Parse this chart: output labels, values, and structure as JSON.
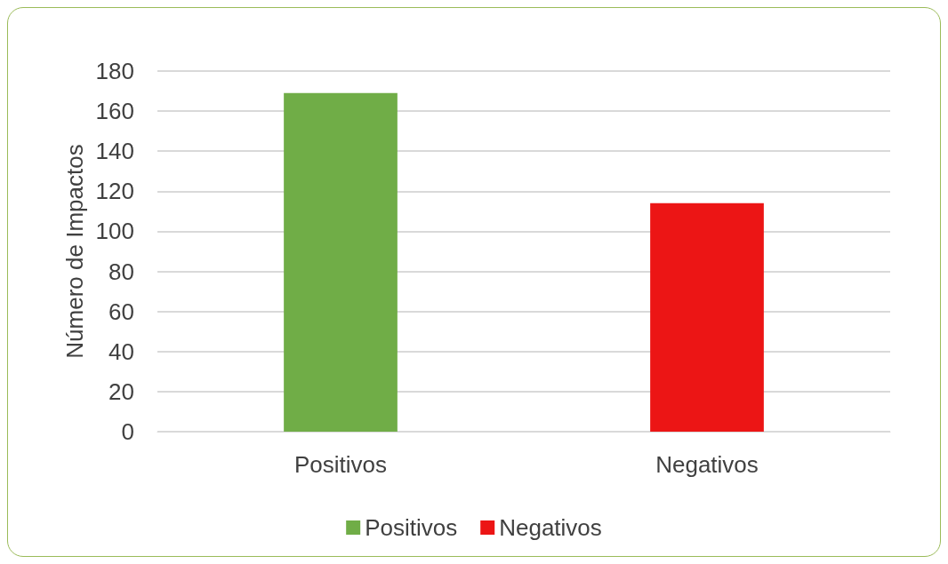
{
  "chart_data": {
    "type": "bar",
    "ylabel": "Número de Impactos",
    "categories": [
      "Positivos",
      "Negativos"
    ],
    "series": [
      {
        "name": "Positivos",
        "color": "#70ad47",
        "values": [
          169,
          null
        ]
      },
      {
        "name": "Negativos",
        "color": "#ec1515",
        "values": [
          null,
          114
        ]
      }
    ],
    "ylim": [
      0,
      180
    ],
    "yticks": [
      0,
      20,
      40,
      60,
      80,
      100,
      120,
      140,
      160,
      180
    ],
    "grid": "y",
    "legend": "bottom"
  }
}
